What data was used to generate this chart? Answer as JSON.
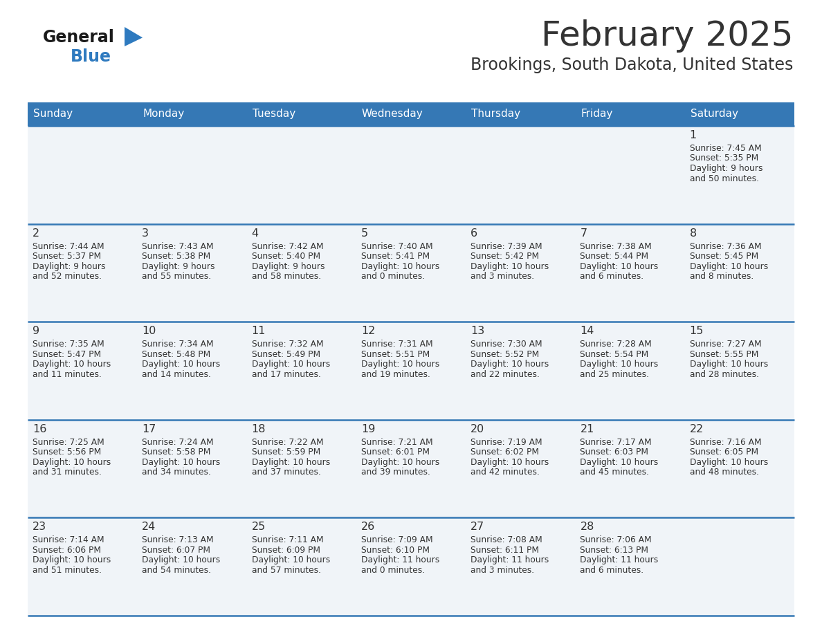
{
  "title": "February 2025",
  "subtitle": "Brookings, South Dakota, United States",
  "header_bg_color": "#3578b5",
  "header_text_color": "#ffffff",
  "cell_bg_color": "#f0f4f8",
  "row_line_color": "#3578b5",
  "text_color": "#333333",
  "days_of_week": [
    "Sunday",
    "Monday",
    "Tuesday",
    "Wednesday",
    "Thursday",
    "Friday",
    "Saturday"
  ],
  "calendar_data": [
    [
      null,
      null,
      null,
      null,
      null,
      null,
      {
        "day": "1",
        "sunrise": "7:45 AM",
        "sunset": "5:35 PM",
        "daylight_line1": "Daylight: 9 hours",
        "daylight_line2": "and 50 minutes."
      }
    ],
    [
      {
        "day": "2",
        "sunrise": "7:44 AM",
        "sunset": "5:37 PM",
        "daylight_line1": "Daylight: 9 hours",
        "daylight_line2": "and 52 minutes."
      },
      {
        "day": "3",
        "sunrise": "7:43 AM",
        "sunset": "5:38 PM",
        "daylight_line1": "Daylight: 9 hours",
        "daylight_line2": "and 55 minutes."
      },
      {
        "day": "4",
        "sunrise": "7:42 AM",
        "sunset": "5:40 PM",
        "daylight_line1": "Daylight: 9 hours",
        "daylight_line2": "and 58 minutes."
      },
      {
        "day": "5",
        "sunrise": "7:40 AM",
        "sunset": "5:41 PM",
        "daylight_line1": "Daylight: 10 hours",
        "daylight_line2": "and 0 minutes."
      },
      {
        "day": "6",
        "sunrise": "7:39 AM",
        "sunset": "5:42 PM",
        "daylight_line1": "Daylight: 10 hours",
        "daylight_line2": "and 3 minutes."
      },
      {
        "day": "7",
        "sunrise": "7:38 AM",
        "sunset": "5:44 PM",
        "daylight_line1": "Daylight: 10 hours",
        "daylight_line2": "and 6 minutes."
      },
      {
        "day": "8",
        "sunrise": "7:36 AM",
        "sunset": "5:45 PM",
        "daylight_line1": "Daylight: 10 hours",
        "daylight_line2": "and 8 minutes."
      }
    ],
    [
      {
        "day": "9",
        "sunrise": "7:35 AM",
        "sunset": "5:47 PM",
        "daylight_line1": "Daylight: 10 hours",
        "daylight_line2": "and 11 minutes."
      },
      {
        "day": "10",
        "sunrise": "7:34 AM",
        "sunset": "5:48 PM",
        "daylight_line1": "Daylight: 10 hours",
        "daylight_line2": "and 14 minutes."
      },
      {
        "day": "11",
        "sunrise": "7:32 AM",
        "sunset": "5:49 PM",
        "daylight_line1": "Daylight: 10 hours",
        "daylight_line2": "and 17 minutes."
      },
      {
        "day": "12",
        "sunrise": "7:31 AM",
        "sunset": "5:51 PM",
        "daylight_line1": "Daylight: 10 hours",
        "daylight_line2": "and 19 minutes."
      },
      {
        "day": "13",
        "sunrise": "7:30 AM",
        "sunset": "5:52 PM",
        "daylight_line1": "Daylight: 10 hours",
        "daylight_line2": "and 22 minutes."
      },
      {
        "day": "14",
        "sunrise": "7:28 AM",
        "sunset": "5:54 PM",
        "daylight_line1": "Daylight: 10 hours",
        "daylight_line2": "and 25 minutes."
      },
      {
        "day": "15",
        "sunrise": "7:27 AM",
        "sunset": "5:55 PM",
        "daylight_line1": "Daylight: 10 hours",
        "daylight_line2": "and 28 minutes."
      }
    ],
    [
      {
        "day": "16",
        "sunrise": "7:25 AM",
        "sunset": "5:56 PM",
        "daylight_line1": "Daylight: 10 hours",
        "daylight_line2": "and 31 minutes."
      },
      {
        "day": "17",
        "sunrise": "7:24 AM",
        "sunset": "5:58 PM",
        "daylight_line1": "Daylight: 10 hours",
        "daylight_line2": "and 34 minutes."
      },
      {
        "day": "18",
        "sunrise": "7:22 AM",
        "sunset": "5:59 PM",
        "daylight_line1": "Daylight: 10 hours",
        "daylight_line2": "and 37 minutes."
      },
      {
        "day": "19",
        "sunrise": "7:21 AM",
        "sunset": "6:01 PM",
        "daylight_line1": "Daylight: 10 hours",
        "daylight_line2": "and 39 minutes."
      },
      {
        "day": "20",
        "sunrise": "7:19 AM",
        "sunset": "6:02 PM",
        "daylight_line1": "Daylight: 10 hours",
        "daylight_line2": "and 42 minutes."
      },
      {
        "day": "21",
        "sunrise": "7:17 AM",
        "sunset": "6:03 PM",
        "daylight_line1": "Daylight: 10 hours",
        "daylight_line2": "and 45 minutes."
      },
      {
        "day": "22",
        "sunrise": "7:16 AM",
        "sunset": "6:05 PM",
        "daylight_line1": "Daylight: 10 hours",
        "daylight_line2": "and 48 minutes."
      }
    ],
    [
      {
        "day": "23",
        "sunrise": "7:14 AM",
        "sunset": "6:06 PM",
        "daylight_line1": "Daylight: 10 hours",
        "daylight_line2": "and 51 minutes."
      },
      {
        "day": "24",
        "sunrise": "7:13 AM",
        "sunset": "6:07 PM",
        "daylight_line1": "Daylight: 10 hours",
        "daylight_line2": "and 54 minutes."
      },
      {
        "day": "25",
        "sunrise": "7:11 AM",
        "sunset": "6:09 PM",
        "daylight_line1": "Daylight: 10 hours",
        "daylight_line2": "and 57 minutes."
      },
      {
        "day": "26",
        "sunrise": "7:09 AM",
        "sunset": "6:10 PM",
        "daylight_line1": "Daylight: 11 hours",
        "daylight_line2": "and 0 minutes."
      },
      {
        "day": "27",
        "sunrise": "7:08 AM",
        "sunset": "6:11 PM",
        "daylight_line1": "Daylight: 11 hours",
        "daylight_line2": "and 3 minutes."
      },
      {
        "day": "28",
        "sunrise": "7:06 AM",
        "sunset": "6:13 PM",
        "daylight_line1": "Daylight: 11 hours",
        "daylight_line2": "and 6 minutes."
      },
      null
    ]
  ],
  "logo_general_color": "#1a1a1a",
  "logo_blue_color": "#2e7abf",
  "fig_width": 11.88,
  "fig_height": 9.18,
  "dpi": 100
}
